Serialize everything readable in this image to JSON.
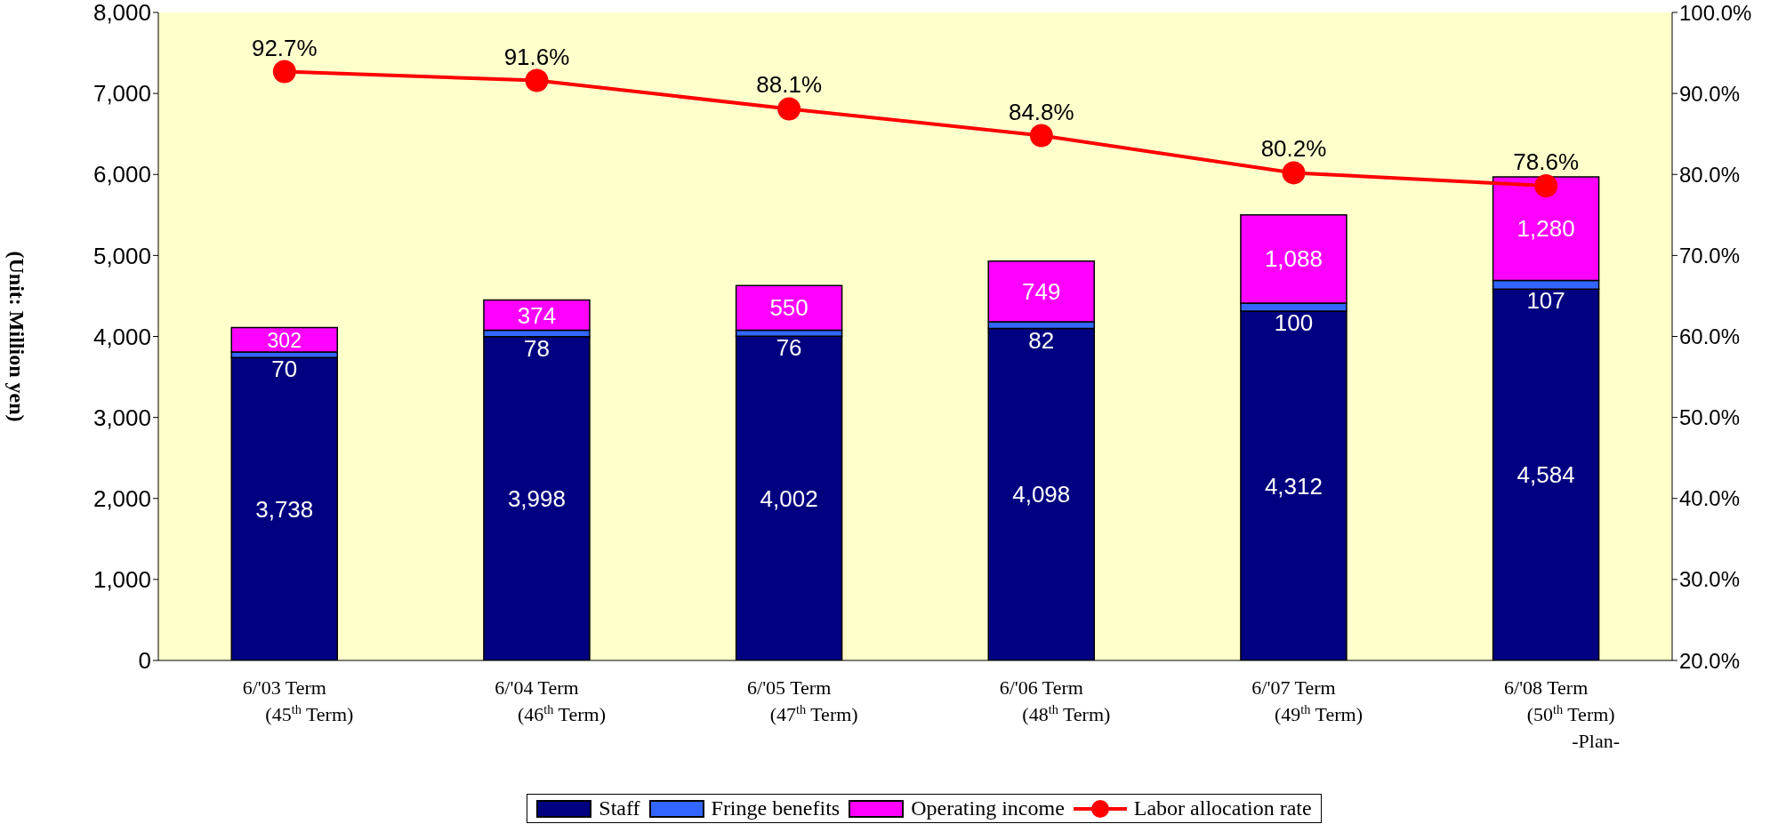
{
  "chart_data": {
    "type": "bar",
    "stacked": true,
    "ylabel": "(Unit: Million yen)",
    "categories": [
      "6/'03 Term\n(45$^{th}$ Term)",
      "6/'04 Term\n(46$^{th}$ Term)",
      "6/'05 Term\n(47$^{th}$ Term)",
      "6/'06 Term\n(48$^{th}$ Term)",
      "6/'07 Term\n(49$^{th}$ Term)",
      "6/'08 Term\n(50$^{th}$ Term)\n-Plan-"
    ],
    "series": [
      {
        "name": "Staff",
        "color": "#000080",
        "values": [
          3738,
          3998,
          4002,
          4098,
          4312,
          4584
        ],
        "value_labels": [
          "3,738",
          "3,998",
          "4,002",
          "4,098",
          "4,312",
          "4,584"
        ]
      },
      {
        "name": "Fringe benefits",
        "color": "#3366ff",
        "values": [
          70,
          78,
          76,
          82,
          100,
          107
        ],
        "value_labels": [
          "70",
          "78",
          "76",
          "82",
          "100",
          "107"
        ]
      },
      {
        "name": "Operating income",
        "color": "#ff00ff",
        "values": [
          302,
          374,
          550,
          749,
          1088,
          1280
        ],
        "value_labels": [
          "302",
          "374",
          "550",
          "749",
          "1,088",
          "1,280"
        ]
      },
      {
        "name": "Labor allocation rate",
        "type": "line",
        "axis": "y2",
        "color": "#ff0000",
        "marker": "circle",
        "values": [
          92.7,
          91.6,
          88.1,
          84.8,
          80.2,
          78.6
        ],
        "value_labels": [
          "92.7%",
          "91.6%",
          "88.1%",
          "84.8%",
          "80.2%",
          "78.6%"
        ]
      }
    ],
    "ylim": [
      0,
      8000
    ],
    "yticks": [
      0,
      {
        "value": 1000,
        "label": "1,000"
      },
      {
        "value": 2000,
        "label": "2,000"
      },
      {
        "value": 3000,
        "label": "3,000"
      },
      {
        "value": 4000,
        "label": "4,000"
      },
      {
        "value": 5000,
        "label": "5,000"
      },
      {
        "value": 6000,
        "label": "6,000"
      },
      {
        "value": 7000,
        "label": "7,000"
      },
      {
        "value": 8000,
        "label": "8,000"
      }
    ],
    "y2lim": [
      20,
      100
    ],
    "y2ticks": [
      {
        "value": 20,
        "label": "20.0%"
      },
      {
        "value": 30,
        "label": "30.0%"
      },
      {
        "value": 40,
        "label": "40.0%"
      },
      {
        "value": 50,
        "label": "50.0%"
      },
      {
        "value": 60,
        "label": "60.0%"
      },
      {
        "value": 70,
        "label": "70.0%"
      },
      {
        "value": 80,
        "label": "80.0%"
      },
      {
        "value": 90,
        "label": "90.0%"
      },
      {
        "value": 100,
        "label": "100.0%"
      }
    ],
    "legend": "bottom"
  }
}
